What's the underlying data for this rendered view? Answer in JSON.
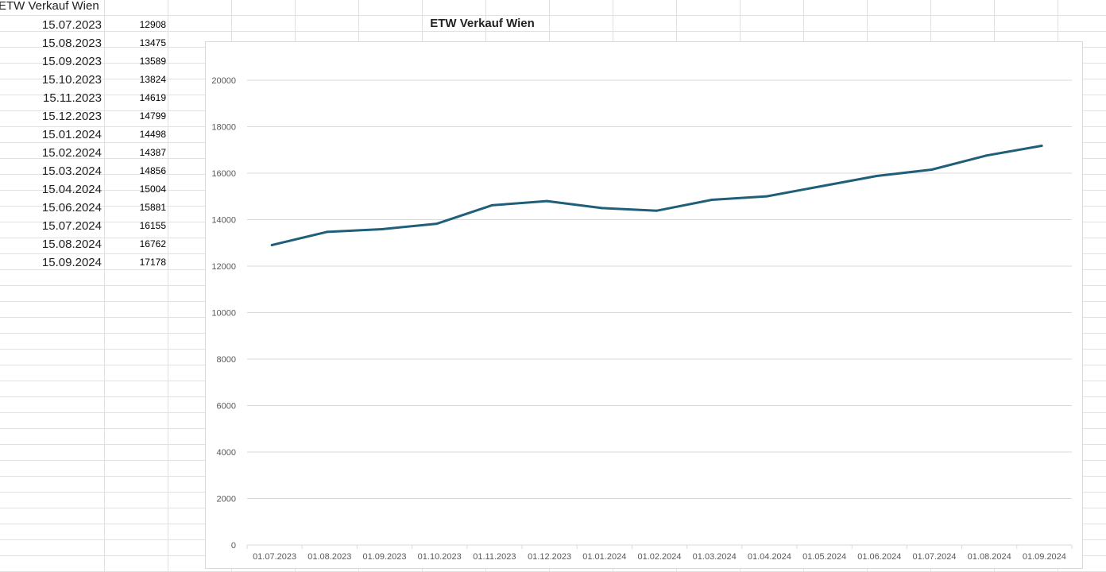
{
  "sheet": {
    "header_cell": "ETW Verkauf Wien",
    "rows": [
      {
        "date": "15.07.2023",
        "value": "12908"
      },
      {
        "date": "15.08.2023",
        "value": "13475"
      },
      {
        "date": "15.09.2023",
        "value": "13589"
      },
      {
        "date": "15.10.2023",
        "value": "13824"
      },
      {
        "date": "15.11.2023",
        "value": "14619"
      },
      {
        "date": "15.12.2023",
        "value": "14799"
      },
      {
        "date": "15.01.2024",
        "value": "14498"
      },
      {
        "date": "15.02.2024",
        "value": "14387"
      },
      {
        "date": "15.03.2024",
        "value": "14856"
      },
      {
        "date": "15.04.2024",
        "value": "15004"
      },
      {
        "date": "15.06.2024",
        "value": "15881"
      },
      {
        "date": "15.07.2024",
        "value": "16155"
      },
      {
        "date": "15.08.2024",
        "value": "16762"
      },
      {
        "date": "15.09.2024",
        "value": "17178"
      }
    ]
  },
  "colors": {
    "line": "#1f5f7a",
    "gridline": "#d9d9d9",
    "cell_border": "#e1e1e1",
    "axis_text": "#595959"
  },
  "chart_data": {
    "type": "line",
    "title": "ETW Verkauf Wien",
    "xlabel": "",
    "ylabel": "",
    "ylim": [
      0,
      20000
    ],
    "y_ticks": [
      "0",
      "2000",
      "4000",
      "6000",
      "8000",
      "10000",
      "12000",
      "14000",
      "16000",
      "18000",
      "20000"
    ],
    "x_ticks": [
      "01.07.2023",
      "01.08.2023",
      "01.09.2023",
      "01.10.2023",
      "01.11.2023",
      "01.12.2023",
      "01.01.2024",
      "01.02.2024",
      "01.03.2024",
      "01.04.2024",
      "01.05.2024",
      "01.06.2024",
      "01.07.2024",
      "01.08.2024",
      "01.09.2024"
    ],
    "grid": true,
    "legend": "none",
    "series": [
      {
        "points": [
          {
            "x": "15.07.2023",
            "y": 12908
          },
          {
            "x": "15.08.2023",
            "y": 13475
          },
          {
            "x": "15.09.2023",
            "y": 13589
          },
          {
            "x": "15.10.2023",
            "y": 13824
          },
          {
            "x": "15.11.2023",
            "y": 14619
          },
          {
            "x": "15.12.2023",
            "y": 14799
          },
          {
            "x": "15.01.2024",
            "y": 14498
          },
          {
            "x": "15.02.2024",
            "y": 14387
          },
          {
            "x": "15.03.2024",
            "y": 14856
          },
          {
            "x": "15.04.2024",
            "y": 15004
          },
          {
            "x": "15.06.2024",
            "y": 15881
          },
          {
            "x": "15.07.2024",
            "y": 16155
          },
          {
            "x": "15.08.2024",
            "y": 16762
          },
          {
            "x": "15.09.2024",
            "y": 17178
          }
        ]
      }
    ]
  }
}
